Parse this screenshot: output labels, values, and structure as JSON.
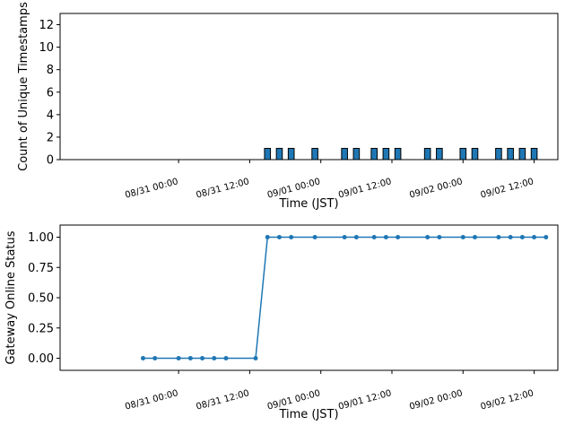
{
  "chart_data": [
    {
      "type": "bar",
      "ylabel": "Count of Unique Timestamps",
      "xlabel": "Time (JST)",
      "ylim": [
        0,
        13
      ],
      "yticks": [
        0,
        2,
        4,
        6,
        8,
        10,
        12
      ],
      "xlim_hours": [
        -20,
        64
      ],
      "xticks": [
        {
          "label": "08/31 00:00",
          "hour": 0
        },
        {
          "label": "08/31 12:00",
          "hour": 12
        },
        {
          "label": "09/01 00:00",
          "hour": 24
        },
        {
          "label": "09/01 12:00",
          "hour": 36
        },
        {
          "label": "09/02 00:00",
          "hour": 48
        },
        {
          "label": "09/02 12:00",
          "hour": 60
        }
      ],
      "bar_width_hours": 1,
      "bar_color": "#1f77b4",
      "bars_hour": [
        15,
        17,
        19,
        23,
        28,
        30,
        33,
        35,
        37,
        42,
        44,
        48,
        50,
        54,
        56,
        58,
        60
      ],
      "bar_values": [
        1,
        1,
        1,
        1,
        1,
        1,
        1,
        1,
        1,
        1,
        1,
        1,
        1,
        1,
        1,
        1,
        1
      ],
      "zero_line_hours": [
        -9,
        15
      ]
    },
    {
      "type": "line",
      "ylabel": "Gateway Online Status",
      "xlabel": "Time (JST)",
      "ylim": [
        -0.1,
        1.1
      ],
      "yticks": [
        "0.00",
        "0.25",
        "0.50",
        "0.75",
        "1.00"
      ],
      "xlim_hours": [
        -20,
        64
      ],
      "xticks": [
        {
          "label": "08/31 00:00",
          "hour": 0
        },
        {
          "label": "08/31 12:00",
          "hour": 12
        },
        {
          "label": "09/01 00:00",
          "hour": 24
        },
        {
          "label": "09/01 12:00",
          "hour": 36
        },
        {
          "label": "09/02 00:00",
          "hour": 48
        },
        {
          "label": "09/02 12:00",
          "hour": 60
        }
      ],
      "line_color": "#1f77b4",
      "x_hours": [
        -6,
        -4,
        0,
        2,
        4,
        6,
        8,
        13,
        15,
        17,
        19,
        23,
        28,
        30,
        33,
        35,
        37,
        42,
        44,
        48,
        50,
        54,
        56,
        58,
        60,
        62
      ],
      "y": [
        0,
        0,
        0,
        0,
        0,
        0,
        0,
        0,
        1,
        1,
        1,
        1,
        1,
        1,
        1,
        1,
        1,
        1,
        1,
        1,
        1,
        1,
        1,
        1,
        1,
        1
      ]
    }
  ]
}
